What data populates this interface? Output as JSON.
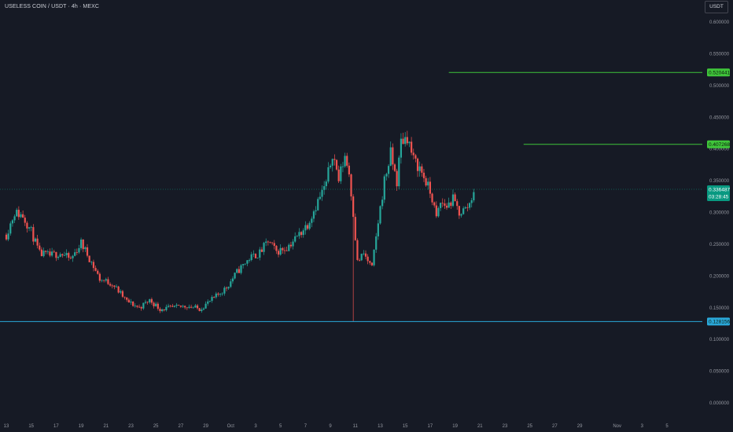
{
  "header": {
    "title": "USELESS COIN / USDT · 4h · MEXC",
    "currency_button": "USDT"
  },
  "colors": {
    "background": "#161a25",
    "up": "#26a69a",
    "down": "#ef5350",
    "resistance_line": "#3fc43a",
    "support_line": "#2aa8d9",
    "current_price": "#089981"
  },
  "chart_data": {
    "type": "candlestick",
    "title": "USELESS COIN / USDT · 4h · MEXC",
    "ylim": [
      0,
      0.62
    ],
    "y_ticks": [
      "0.600000",
      "0.550000",
      "0.500000",
      "0.450000",
      "0.400000",
      "0.350000",
      "0.300000",
      "0.250000",
      "0.200000",
      "0.150000",
      "0.100000",
      "0.050000",
      "0.000000"
    ],
    "x_ticks": [
      "13",
      "15",
      "17",
      "19",
      "21",
      "23",
      "25",
      "27",
      "29",
      "Oct",
      "3",
      "5",
      "7",
      "9",
      "11",
      "13",
      "15",
      "17",
      "19",
      "21",
      "23",
      "25",
      "27",
      "29",
      "Nov",
      "3",
      "5"
    ],
    "series": [
      {
        "anchors": [
          {
            "date": "Sep 13 00:00",
            "close": 0.265
          },
          {
            "date": "Sep 13 16:00",
            "close": 0.3
          },
          {
            "date": "Sep 14 08:00",
            "close": 0.295
          },
          {
            "date": "Sep 15 00:00",
            "close": 0.27
          },
          {
            "date": "Sep 15 16:00",
            "close": 0.235
          },
          {
            "date": "Sep 16 12:00",
            "close": 0.232
          },
          {
            "date": "Sep 17 08:00",
            "close": 0.236
          },
          {
            "date": "Sep 18 04:00",
            "close": 0.226
          },
          {
            "date": "Sep 19 00:00",
            "close": 0.252
          },
          {
            "date": "Sep 19 16:00",
            "close": 0.228
          },
          {
            "date": "Sep 20 12:00",
            "close": 0.195
          },
          {
            "date": "Sep 21 12:00",
            "close": 0.188
          },
          {
            "date": "Sep 22 16:00",
            "close": 0.16
          },
          {
            "date": "Sep 23 16:00",
            "close": 0.15
          },
          {
            "date": "Sep 24 12:00",
            "close": 0.162
          },
          {
            "date": "Sep 25 08:00",
            "close": 0.148
          },
          {
            "date": "Sep 26 12:00",
            "close": 0.15
          },
          {
            "date": "Sep 27 12:00",
            "close": 0.153
          },
          {
            "date": "Sep 28 12:00",
            "close": 0.148
          },
          {
            "date": "Sep 29 16:00",
            "close": 0.165
          },
          {
            "date": "Sep 30 16:00",
            "close": 0.182
          },
          {
            "date": "Oct 1 12:00",
            "close": 0.206
          },
          {
            "date": "Oct 2 12:00",
            "close": 0.228
          },
          {
            "date": "Oct 3 08:00",
            "close": 0.236
          },
          {
            "date": "Oct 4 00:00",
            "close": 0.255
          },
          {
            "date": "Oct 4 16:00",
            "close": 0.238
          },
          {
            "date": "Oct 5 12:00",
            "close": 0.245
          },
          {
            "date": "Oct 6 08:00",
            "close": 0.262
          },
          {
            "date": "Oct 7 04:00",
            "close": 0.282
          },
          {
            "date": "Oct 8 00:00",
            "close": 0.318
          },
          {
            "date": "Oct 8 16:00",
            "close": 0.345
          },
          {
            "date": "Oct 9 04:00",
            "close": 0.395
          },
          {
            "date": "Oct 9 16:00",
            "close": 0.352
          },
          {
            "date": "Oct 10 04:00",
            "close": 0.39
          },
          {
            "date": "Oct 10 12:00",
            "close": 0.362
          },
          {
            "date": "Oct 10 20:00",
            "close": 0.3
          },
          {
            "date": "Oct 11 04:00",
            "close": 0.222
          },
          {
            "date": "Oct 11 16:00",
            "close": 0.235
          },
          {
            "date": "Oct 12 08:00",
            "close": 0.212
          },
          {
            "date": "Oct 12 20:00",
            "close": 0.285
          },
          {
            "date": "Oct 13 08:00",
            "close": 0.35
          },
          {
            "date": "Oct 13 20:00",
            "close": 0.392
          },
          {
            "date": "Oct 14 08:00",
            "close": 0.348
          },
          {
            "date": "Oct 14 16:00",
            "close": 0.412
          },
          {
            "date": "Oct 15 04:00",
            "close": 0.42
          },
          {
            "date": "Oct 15 16:00",
            "close": 0.382
          },
          {
            "date": "Oct 16 04:00",
            "close": 0.37
          },
          {
            "date": "Oct 16 16:00",
            "close": 0.348
          },
          {
            "date": "Oct 17 04:00",
            "close": 0.322
          },
          {
            "date": "Oct 17 12:00",
            "close": 0.29
          },
          {
            "date": "Oct 17 20:00",
            "close": 0.315
          },
          {
            "date": "Oct 18 08:00",
            "close": 0.31
          },
          {
            "date": "Oct 18 20:00",
            "close": 0.32
          },
          {
            "date": "Oct 19 08:00",
            "close": 0.3
          },
          {
            "date": "Oct 19 20:00",
            "close": 0.305
          },
          {
            "date": "Oct 20 04:00",
            "close": 0.314
          },
          {
            "date": "Oct 20 12:00",
            "close": 0.336
          }
        ],
        "spikes": [
          {
            "date": "Oct 10 20:00",
            "low": 0.128
          }
        ]
      }
    ],
    "price_levels": [
      {
        "label": "0.520441",
        "value": 0.520441,
        "from": "Oct 18 12:00",
        "role": "resistance"
      },
      {
        "label": "0.407268",
        "value": 0.407268,
        "from": "Oct 24 12:00",
        "role": "resistance"
      },
      {
        "label": "0.128156",
        "value": 0.128156,
        "from": "Sep 13 00:00",
        "role": "support"
      }
    ],
    "current_price": {
      "value": 0.336487,
      "label": "0.336487",
      "countdown": "03:28:45"
    },
    "grid": false,
    "legend": "none"
  }
}
